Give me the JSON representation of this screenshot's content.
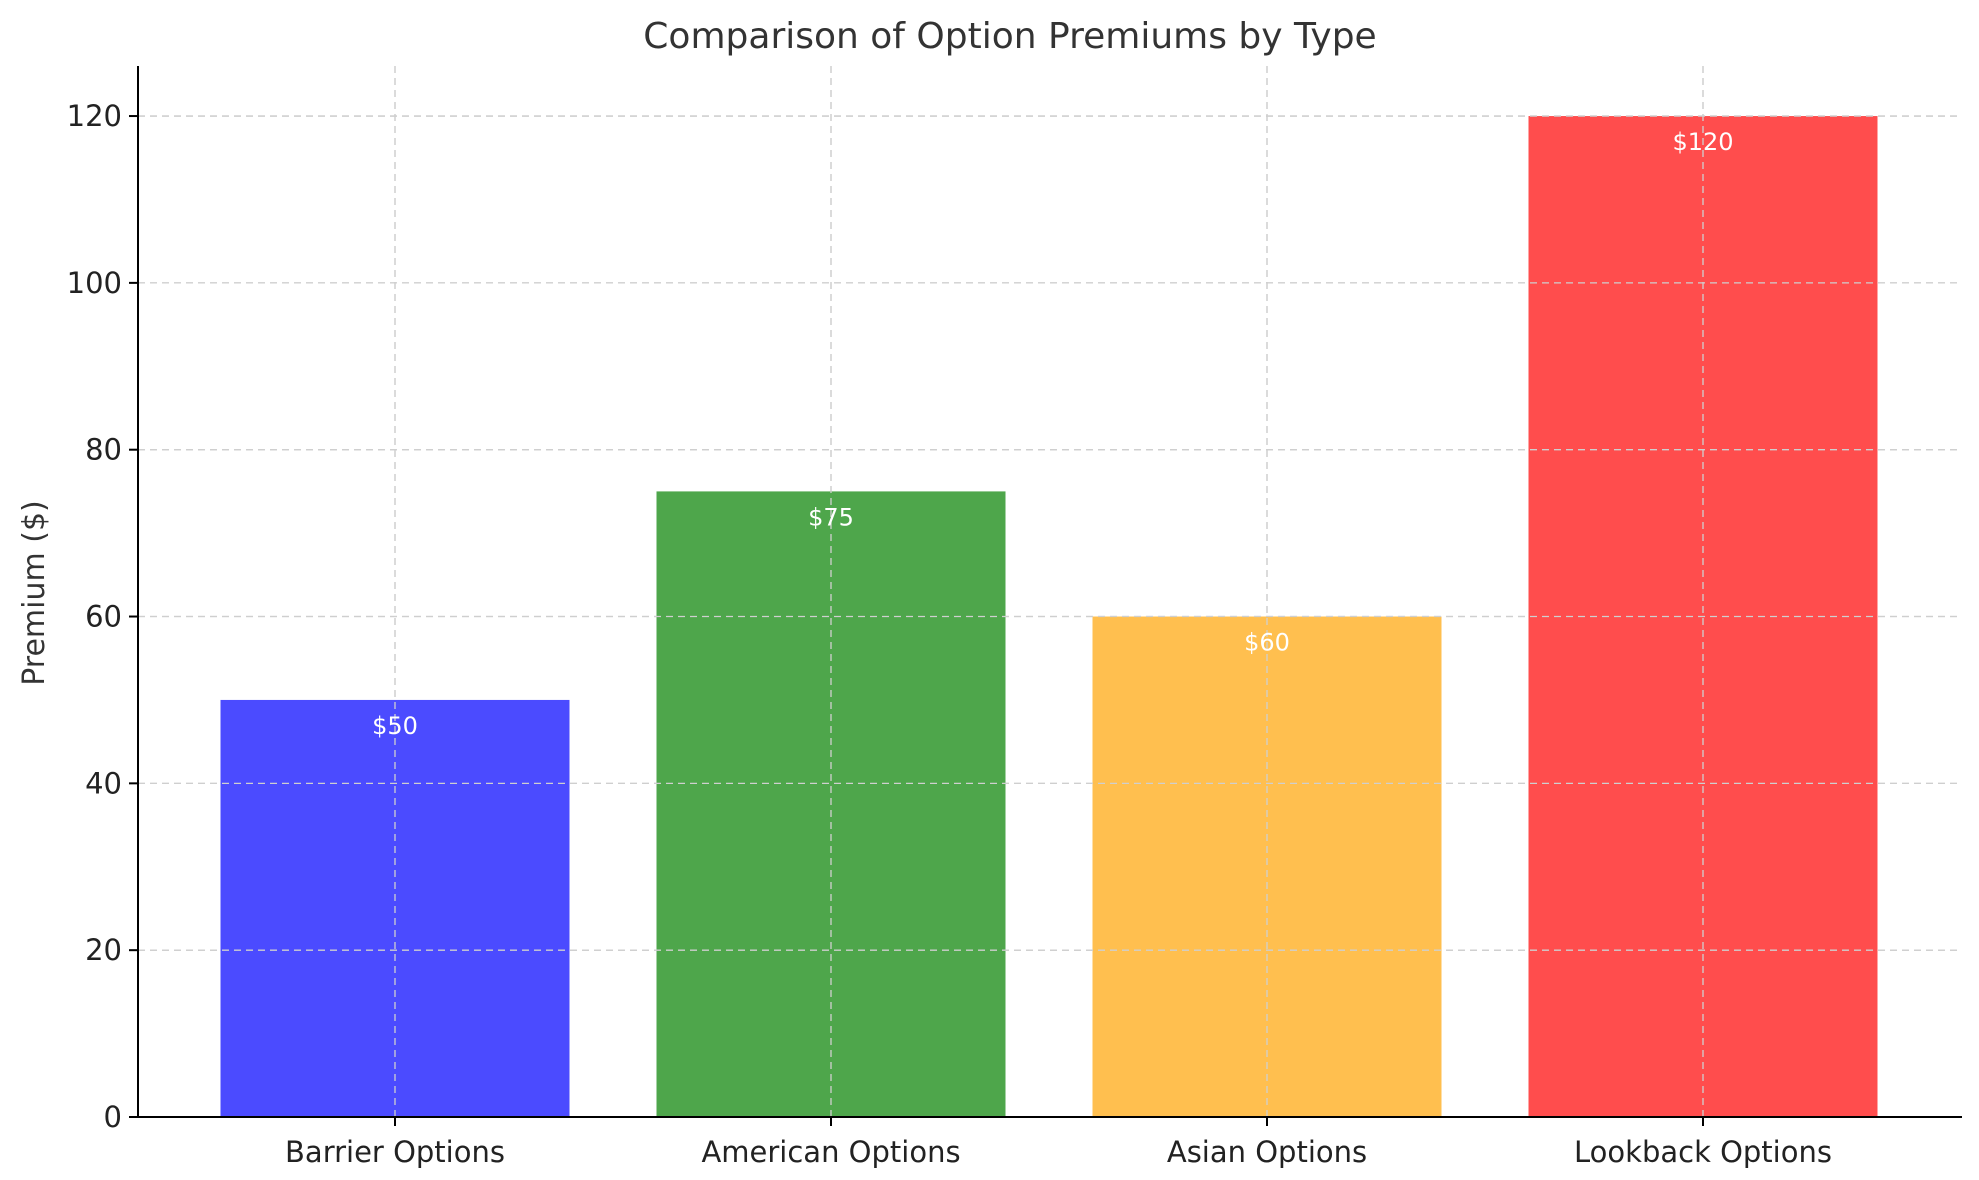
{
  "chart_data": {
    "type": "bar",
    "title": "Comparison of Option Premiums by Type",
    "xlabel": "",
    "ylabel": "Premium ($)",
    "categories": [
      "Barrier Options",
      "American Options",
      "Asian Options",
      "Lookback Options"
    ],
    "values": [
      50,
      75,
      60,
      120
    ],
    "data_labels": [
      "$50",
      "$75",
      "$60",
      "$120"
    ],
    "colors": [
      "#4b4bff",
      "#4ea64b",
      "#ffbf4f",
      "#ff4d4d"
    ],
    "ylim": [
      0,
      126
    ],
    "yticks": [
      0,
      20,
      40,
      60,
      80,
      100,
      120
    ],
    "grid": true,
    "legend": "none"
  }
}
